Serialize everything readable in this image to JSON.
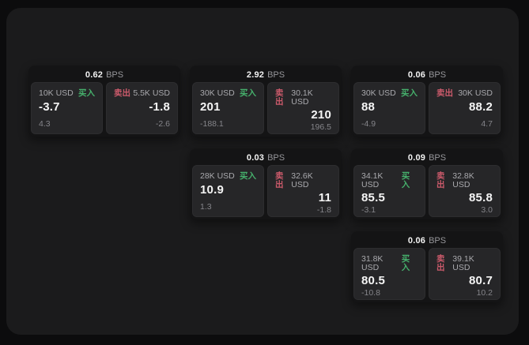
{
  "labels": {
    "bps_unit": "BPS",
    "buy": "买入",
    "sell": "卖出"
  },
  "colors": {
    "page_bg": "#0c0c0d",
    "panel_bg": "#1b1b1c",
    "card_bg": "#141415",
    "cell_bg": "#262628",
    "buy_green": "#46b06c",
    "sell_red": "#cc5a6b",
    "value_white": "#f5f5f5",
    "muted_gray": "#85858a"
  },
  "cards": [
    {
      "bps": "0.62",
      "buy": {
        "amount": "10K USD",
        "value": "-3.7",
        "change": "4.3"
      },
      "sell": {
        "amount": "5.5K USD",
        "value": "-1.8",
        "change": "-2.6"
      }
    },
    {
      "bps": "2.92",
      "buy": {
        "amount": "30K USD",
        "value": "201",
        "change": "-188.1"
      },
      "sell": {
        "amount": "30.1K USD",
        "value": "210",
        "change": "196.5"
      }
    },
    {
      "bps": "0.06",
      "buy": {
        "amount": "30K USD",
        "value": "88",
        "change": "-4.9"
      },
      "sell": {
        "amount": "30K USD",
        "value": "88.2",
        "change": "4.7"
      }
    },
    {
      "bps": "0.03",
      "buy": {
        "amount": "28K USD",
        "value": "10.9",
        "change": "1.3"
      },
      "sell": {
        "amount": "32.6K USD",
        "value": "11",
        "change": "-1.8"
      }
    },
    {
      "bps": "0.09",
      "buy": {
        "amount": "34.1K USD",
        "value": "85.5",
        "change": "-3.1"
      },
      "sell": {
        "amount": "32.8K USD",
        "value": "85.8",
        "change": "3.0"
      }
    },
    {
      "bps": "0.06",
      "buy": {
        "amount": "31.8K USD",
        "value": "80.5",
        "change": "-10.8"
      },
      "sell": {
        "amount": "39.1K USD",
        "value": "80.7",
        "change": "10.2"
      }
    }
  ]
}
